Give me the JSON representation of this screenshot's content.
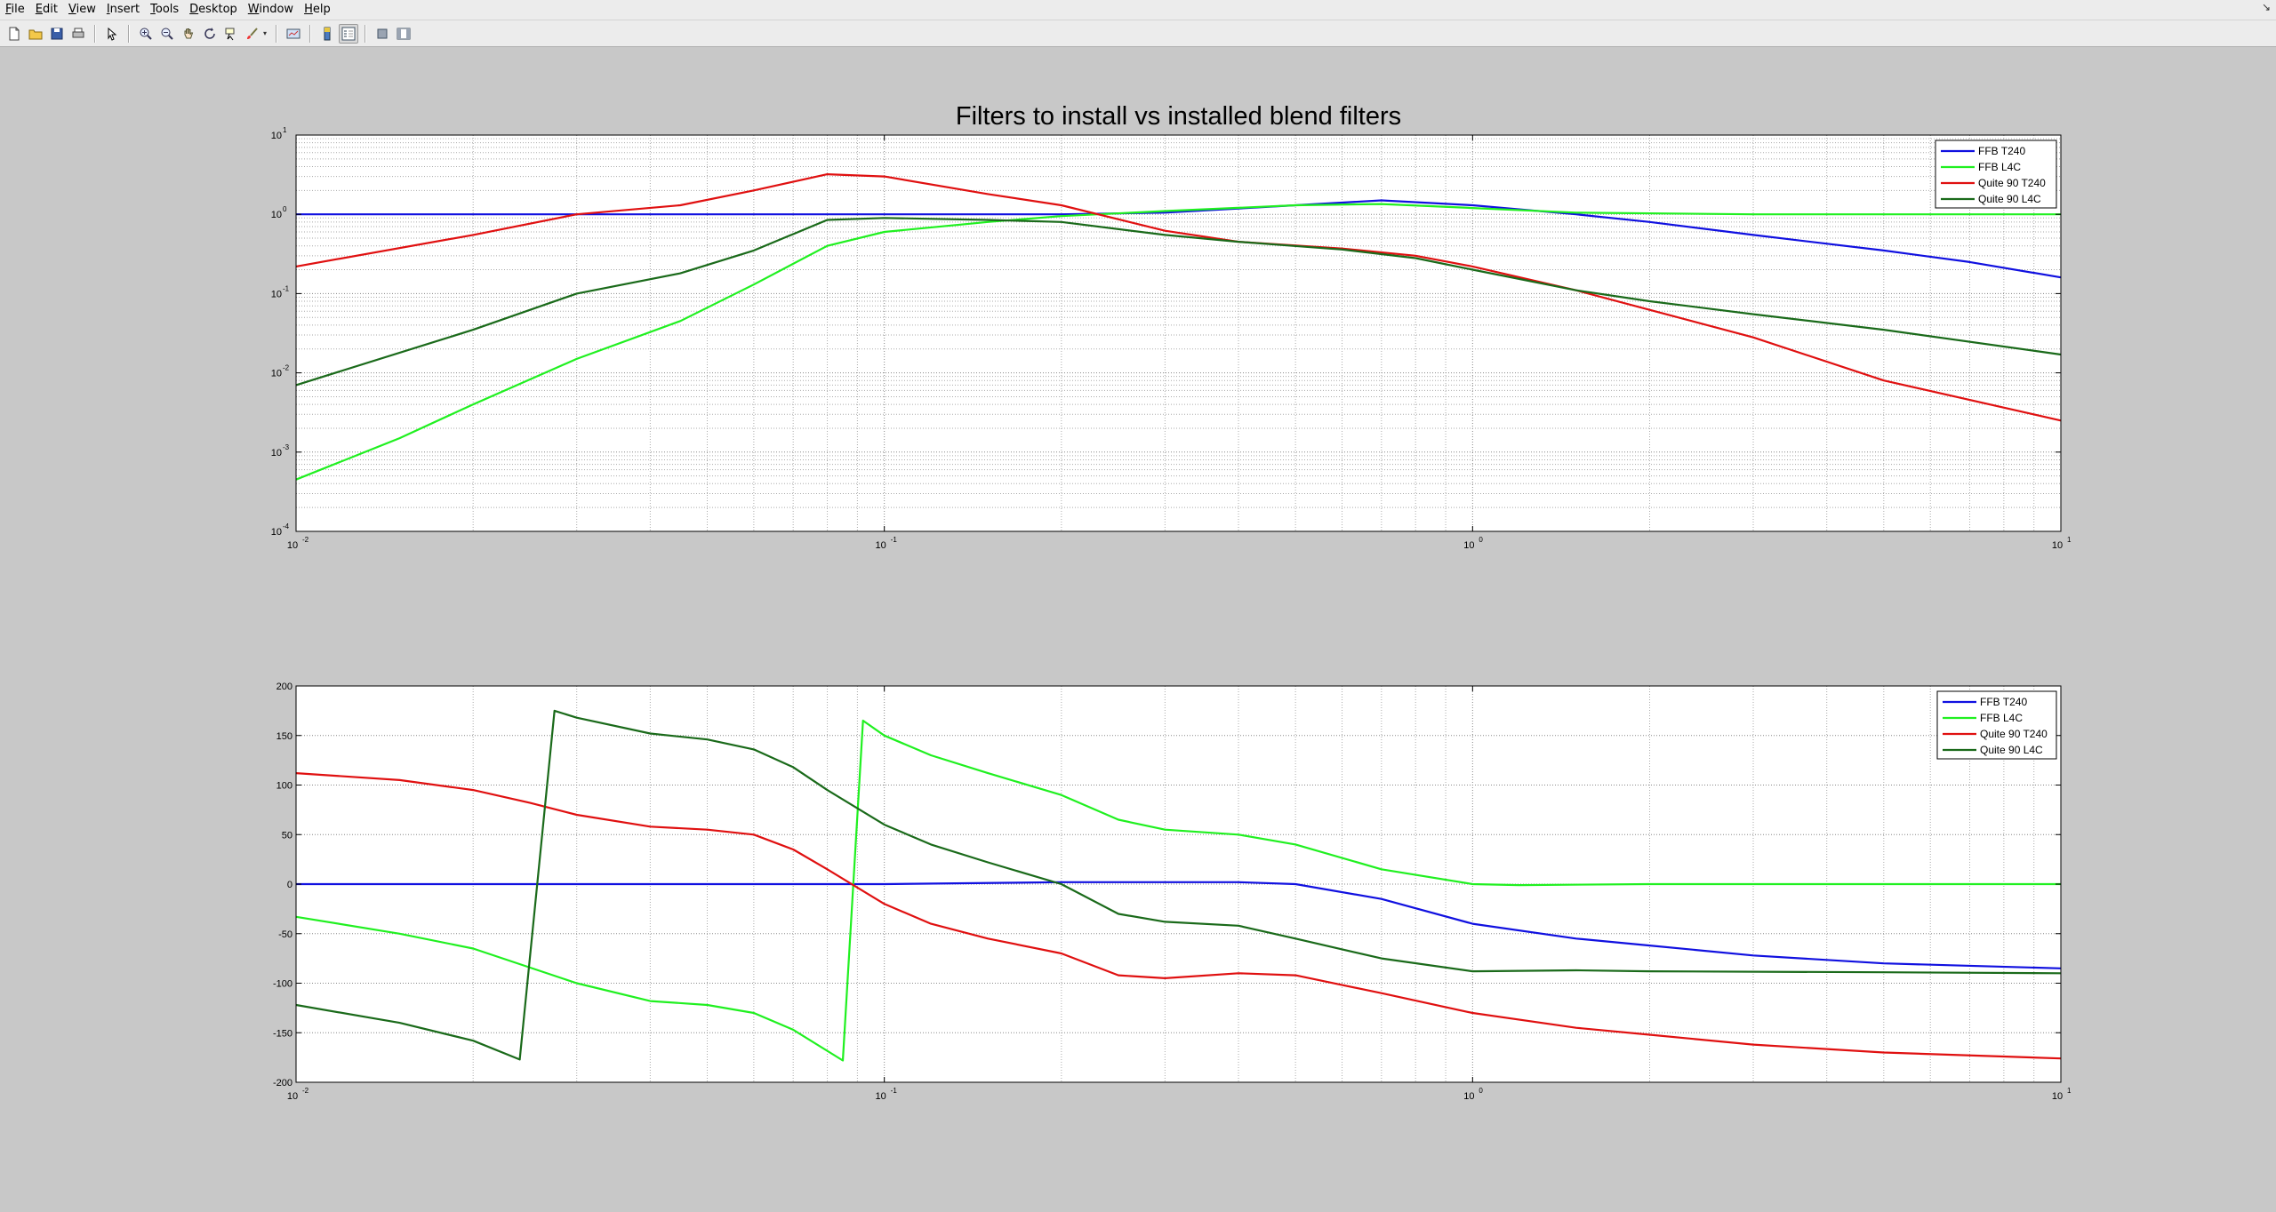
{
  "menubar": {
    "items": [
      "File",
      "Edit",
      "View",
      "Insert",
      "Tools",
      "Desktop",
      "Window",
      "Help"
    ]
  },
  "toolbar": {
    "buttons": [
      "new-figure-icon",
      "open-file-icon",
      "save-icon",
      "print-icon",
      "pointer-icon",
      "zoom-in-icon",
      "zoom-out-icon",
      "pan-hand-icon",
      "rotate-3d-icon",
      "data-cursor-icon",
      "brush-icon",
      "link-plot-icon",
      "colorbar-icon",
      "legend-icon",
      "hide-plot-tools-icon",
      "show-plot-tools-icon"
    ]
  },
  "colors": {
    "figure_bg": "#c8c8c8",
    "axes_bg": "#ffffff",
    "FFB T240": "#1010e0",
    "FFB L4C": "#20f020",
    "Quite 90 T240": "#e01010",
    "Quite 90 L4C": "#1a6a1a"
  },
  "chart_data": [
    {
      "type": "line",
      "title": "Filters to install vs installed blend filters",
      "xscale": "log",
      "yscale": "log",
      "xlim": [
        0.01,
        10
      ],
      "ylim": [
        0.0001,
        10
      ],
      "grid": "on (major and minor)",
      "legend_placement": "top-right",
      "xtick_labels": [
        [
          "10",
          "-2"
        ],
        [
          "10",
          "-1"
        ],
        [
          "10",
          "0"
        ],
        [
          "10",
          "1"
        ]
      ],
      "ytick_labels": [
        [
          "10",
          "-4"
        ],
        [
          "10",
          "-3"
        ],
        [
          "10",
          "-2"
        ],
        [
          "10",
          "-1"
        ],
        [
          "10",
          "0"
        ],
        [
          "10",
          "1"
        ]
      ],
      "series": [
        {
          "name": "FFB T240",
          "color": "#1010e0",
          "x": [
            0.01,
            0.05,
            0.1,
            0.2,
            0.3,
            0.5,
            0.7,
            1.0,
            1.5,
            2,
            3,
            5,
            7,
            10
          ],
          "y": [
            1.0,
            1.0,
            1.0,
            1.0,
            1.05,
            1.3,
            1.5,
            1.3,
            1.0,
            0.8,
            0.55,
            0.35,
            0.25,
            0.16
          ]
        },
        {
          "name": "FFB L4C",
          "color": "#20f020",
          "x": [
            0.01,
            0.015,
            0.02,
            0.03,
            0.045,
            0.06,
            0.08,
            0.1,
            0.15,
            0.2,
            0.3,
            0.5,
            0.7,
            1.0,
            1.5,
            3,
            10
          ],
          "y": [
            0.00045,
            0.0015,
            0.004,
            0.015,
            0.045,
            0.13,
            0.4,
            0.6,
            0.8,
            0.95,
            1.1,
            1.3,
            1.35,
            1.2,
            1.05,
            1.0,
            1.0
          ]
        },
        {
          "name": "Quite 90 T240",
          "color": "#e01010",
          "x": [
            0.01,
            0.02,
            0.03,
            0.045,
            0.06,
            0.08,
            0.1,
            0.15,
            0.2,
            0.3,
            0.4,
            0.6,
            0.8,
            1.0,
            1.5,
            3,
            5,
            10
          ],
          "y": [
            0.22,
            0.55,
            1.0,
            1.3,
            2.0,
            3.2,
            3.0,
            1.8,
            1.3,
            0.62,
            0.45,
            0.37,
            0.3,
            0.22,
            0.11,
            0.028,
            0.008,
            0.0025
          ]
        },
        {
          "name": "Quite 90 L4C",
          "color": "#1a6a1a",
          "x": [
            0.01,
            0.02,
            0.03,
            0.045,
            0.06,
            0.08,
            0.1,
            0.15,
            0.2,
            0.3,
            0.4,
            0.6,
            0.8,
            1.0,
            1.5,
            2,
            3,
            5,
            10
          ],
          "y": [
            0.007,
            0.035,
            0.1,
            0.18,
            0.35,
            0.85,
            0.9,
            0.85,
            0.8,
            0.55,
            0.45,
            0.36,
            0.28,
            0.2,
            0.11,
            0.08,
            0.055,
            0.035,
            0.017
          ]
        }
      ]
    },
    {
      "type": "line",
      "title": "",
      "xscale": "log",
      "yscale": "linear",
      "xlim": [
        0.01,
        10
      ],
      "ylim": [
        -200,
        200
      ],
      "grid": "on (major and minor)",
      "legend_placement": "top-right",
      "xtick_labels": [
        [
          "10",
          "-2"
        ],
        [
          "10",
          "-1"
        ],
        [
          "10",
          "0"
        ],
        [
          "10",
          "1"
        ]
      ],
      "ytick_labels": [
        "200",
        "150",
        "100",
        "50",
        "0",
        "-50",
        "-100",
        "-150",
        "-200"
      ],
      "yticks": [
        200,
        150,
        100,
        50,
        0,
        -50,
        -100,
        -150,
        -200
      ],
      "series": [
        {
          "name": "FFB T240",
          "color": "#1010e0",
          "x": [
            0.01,
            0.1,
            0.2,
            0.3,
            0.4,
            0.5,
            0.7,
            1.0,
            1.5,
            2,
            3,
            5,
            10
          ],
          "y": [
            0,
            0,
            2,
            2,
            2,
            0,
            -15,
            -40,
            -55,
            -62,
            -72,
            -80,
            -85
          ]
        },
        {
          "name": "FFB L4C",
          "color": "#20f020",
          "x": [
            0.01,
            0.015,
            0.02,
            0.03,
            0.04,
            0.05,
            0.06,
            0.07,
            0.085,
            0.092,
            0.1,
            0.12,
            0.15,
            0.2,
            0.25,
            0.3,
            0.4,
            0.5,
            0.7,
            1.0,
            1.2,
            2,
            5,
            10
          ],
          "y": [
            -33,
            -50,
            -65,
            -100,
            -118,
            -122,
            -130,
            -147,
            -178,
            165,
            150,
            130,
            112,
            90,
            65,
            55,
            50,
            40,
            15,
            0,
            -1,
            0,
            0,
            0
          ]
        },
        {
          "name": "Quite 90 T240",
          "color": "#e01010",
          "x": [
            0.01,
            0.015,
            0.02,
            0.025,
            0.03,
            0.04,
            0.05,
            0.06,
            0.07,
            0.08,
            0.1,
            0.12,
            0.15,
            0.2,
            0.25,
            0.3,
            0.4,
            0.5,
            0.7,
            1.0,
            1.5,
            2,
            3,
            5,
            10
          ],
          "y": [
            112,
            105,
            95,
            82,
            70,
            58,
            55,
            50,
            35,
            15,
            -20,
            -40,
            -55,
            -70,
            -92,
            -95,
            -90,
            -92,
            -110,
            -130,
            -145,
            -152,
            -162,
            -170,
            -176
          ]
        },
        {
          "name": "Quite 90 L4C",
          "color": "#1a6a1a",
          "x": [
            0.01,
            0.015,
            0.02,
            0.024,
            0.0275,
            0.03,
            0.04,
            0.05,
            0.06,
            0.07,
            0.08,
            0.1,
            0.12,
            0.15,
            0.2,
            0.25,
            0.3,
            0.4,
            0.5,
            0.7,
            1.0,
            1.5,
            2,
            5,
            10
          ],
          "y": [
            -122,
            -140,
            -158,
            -177,
            175,
            168,
            152,
            146,
            136,
            118,
            95,
            60,
            40,
            22,
            0,
            -30,
            -38,
            -42,
            -55,
            -75,
            -88,
            -87,
            -88,
            -89,
            -90
          ]
        }
      ]
    }
  ]
}
